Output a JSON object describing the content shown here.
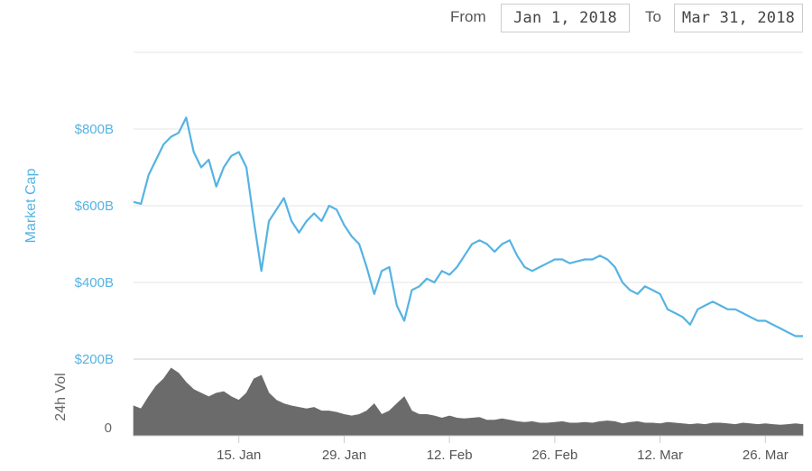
{
  "range_selector": {
    "from_label": "From",
    "from_value": "Jan 1, 2018",
    "to_label": "To",
    "to_value": "Mar 31, 2018"
  },
  "colors": {
    "market_cap_line": "#55b3e3",
    "volume_fill": "#6b6b6b",
    "axis_label": "#55b3e3",
    "volume_label": "#666666",
    "gridline": "#e6e6e6"
  },
  "chart_data": [
    {
      "type": "line",
      "series": [
        {
          "name": "Market Cap",
          "x": [
            "2018-01-01",
            "2018-01-02",
            "2018-01-03",
            "2018-01-04",
            "2018-01-05",
            "2018-01-06",
            "2018-01-07",
            "2018-01-08",
            "2018-01-09",
            "2018-01-10",
            "2018-01-11",
            "2018-01-12",
            "2018-01-13",
            "2018-01-14",
            "2018-01-15",
            "2018-01-16",
            "2018-01-17",
            "2018-01-18",
            "2018-01-19",
            "2018-01-20",
            "2018-01-21",
            "2018-01-22",
            "2018-01-23",
            "2018-01-24",
            "2018-01-25",
            "2018-01-26",
            "2018-01-27",
            "2018-01-28",
            "2018-01-29",
            "2018-01-30",
            "2018-01-31",
            "2018-02-01",
            "2018-02-02",
            "2018-02-03",
            "2018-02-04",
            "2018-02-05",
            "2018-02-06",
            "2018-02-07",
            "2018-02-08",
            "2018-02-09",
            "2018-02-10",
            "2018-02-11",
            "2018-02-12",
            "2018-02-13",
            "2018-02-14",
            "2018-02-15",
            "2018-02-16",
            "2018-02-17",
            "2018-02-18",
            "2018-02-19",
            "2018-02-20",
            "2018-02-21",
            "2018-02-22",
            "2018-02-23",
            "2018-02-24",
            "2018-02-25",
            "2018-02-26",
            "2018-02-27",
            "2018-02-28",
            "2018-03-01",
            "2018-03-02",
            "2018-03-03",
            "2018-03-04",
            "2018-03-05",
            "2018-03-06",
            "2018-03-07",
            "2018-03-08",
            "2018-03-09",
            "2018-03-10",
            "2018-03-11",
            "2018-03-12",
            "2018-03-13",
            "2018-03-14",
            "2018-03-15",
            "2018-03-16",
            "2018-03-17",
            "2018-03-18",
            "2018-03-19",
            "2018-03-20",
            "2018-03-21",
            "2018-03-22",
            "2018-03-23",
            "2018-03-24",
            "2018-03-25",
            "2018-03-26",
            "2018-03-27",
            "2018-03-28",
            "2018-03-29",
            "2018-03-30",
            "2018-03-31"
          ],
          "values": [
            610,
            605,
            680,
            720,
            760,
            780,
            790,
            830,
            740,
            700,
            720,
            650,
            700,
            730,
            740,
            700,
            560,
            430,
            560,
            590,
            620,
            560,
            530,
            560,
            580,
            560,
            600,
            590,
            550,
            520,
            500,
            440,
            370,
            430,
            440,
            340,
            300,
            380,
            390,
            410,
            400,
            430,
            420,
            440,
            470,
            500,
            510,
            500,
            480,
            500,
            510,
            470,
            440,
            430,
            440,
            450,
            460,
            460,
            450,
            455,
            460,
            460,
            470,
            460,
            440,
            400,
            380,
            370,
            390,
            380,
            370,
            330,
            320,
            310,
            290,
            330,
            340,
            350,
            340,
            330,
            330,
            320,
            310,
            300,
            300,
            290,
            280,
            270,
            260,
            260
          ]
        }
      ],
      "ylabel": "Market Cap",
      "yticks": [
        "$200B",
        "$400B",
        "$600B",
        "$800B"
      ],
      "ylim": [
        200,
        1000
      ],
      "y_unit": "$B",
      "xticks": [
        "15. Jan",
        "29. Jan",
        "12. Feb",
        "26. Feb",
        "12. Mar",
        "26. Mar"
      ],
      "xlim": [
        "2018-01-01",
        "2018-03-31"
      ],
      "grid": true
    },
    {
      "type": "area",
      "series": [
        {
          "name": "24h Vol",
          "x": [
            "2018-01-01",
            "2018-01-02",
            "2018-01-03",
            "2018-01-04",
            "2018-01-05",
            "2018-01-06",
            "2018-01-07",
            "2018-01-08",
            "2018-01-09",
            "2018-01-10",
            "2018-01-11",
            "2018-01-12",
            "2018-01-13",
            "2018-01-14",
            "2018-01-15",
            "2018-01-16",
            "2018-01-17",
            "2018-01-18",
            "2018-01-19",
            "2018-01-20",
            "2018-01-21",
            "2018-01-22",
            "2018-01-23",
            "2018-01-24",
            "2018-01-25",
            "2018-01-26",
            "2018-01-27",
            "2018-01-28",
            "2018-01-29",
            "2018-01-30",
            "2018-01-31",
            "2018-02-01",
            "2018-02-02",
            "2018-02-03",
            "2018-02-04",
            "2018-02-05",
            "2018-02-06",
            "2018-02-07",
            "2018-02-08",
            "2018-02-09",
            "2018-02-10",
            "2018-02-11",
            "2018-02-12",
            "2018-02-13",
            "2018-02-14",
            "2018-02-15",
            "2018-02-16",
            "2018-02-17",
            "2018-02-18",
            "2018-02-19",
            "2018-02-20",
            "2018-02-21",
            "2018-02-22",
            "2018-02-23",
            "2018-02-24",
            "2018-02-25",
            "2018-02-26",
            "2018-02-27",
            "2018-02-28",
            "2018-03-01",
            "2018-03-02",
            "2018-03-03",
            "2018-03-04",
            "2018-03-05",
            "2018-03-06",
            "2018-03-07",
            "2018-03-08",
            "2018-03-09",
            "2018-03-10",
            "2018-03-11",
            "2018-03-12",
            "2018-03-13",
            "2018-03-14",
            "2018-03-15",
            "2018-03-16",
            "2018-03-17",
            "2018-03-18",
            "2018-03-19",
            "2018-03-20",
            "2018-03-21",
            "2018-03-22",
            "2018-03-23",
            "2018-03-24",
            "2018-03-25",
            "2018-03-26",
            "2018-03-27",
            "2018-03-28",
            "2018-03-29",
            "2018-03-30",
            "2018-03-31"
          ],
          "values": [
            0.42,
            0.38,
            0.55,
            0.7,
            0.8,
            0.95,
            0.88,
            0.75,
            0.65,
            0.6,
            0.55,
            0.6,
            0.62,
            0.55,
            0.5,
            0.6,
            0.8,
            0.85,
            0.6,
            0.5,
            0.45,
            0.42,
            0.4,
            0.38,
            0.4,
            0.35,
            0.35,
            0.33,
            0.3,
            0.28,
            0.3,
            0.35,
            0.45,
            0.3,
            0.35,
            0.45,
            0.55,
            0.35,
            0.3,
            0.3,
            0.28,
            0.25,
            0.28,
            0.25,
            0.24,
            0.25,
            0.26,
            0.22,
            0.22,
            0.24,
            0.22,
            0.2,
            0.19,
            0.2,
            0.18,
            0.18,
            0.19,
            0.2,
            0.18,
            0.18,
            0.19,
            0.18,
            0.2,
            0.21,
            0.2,
            0.17,
            0.19,
            0.2,
            0.18,
            0.18,
            0.17,
            0.19,
            0.18,
            0.17,
            0.16,
            0.17,
            0.16,
            0.18,
            0.18,
            0.17,
            0.16,
            0.18,
            0.17,
            0.16,
            0.17,
            0.16,
            0.15,
            0.16,
            0.17,
            0.16
          ]
        }
      ],
      "ylabel": "24h Vol",
      "yticks": [
        "0"
      ],
      "ylim": [
        0,
        1
      ]
    }
  ]
}
